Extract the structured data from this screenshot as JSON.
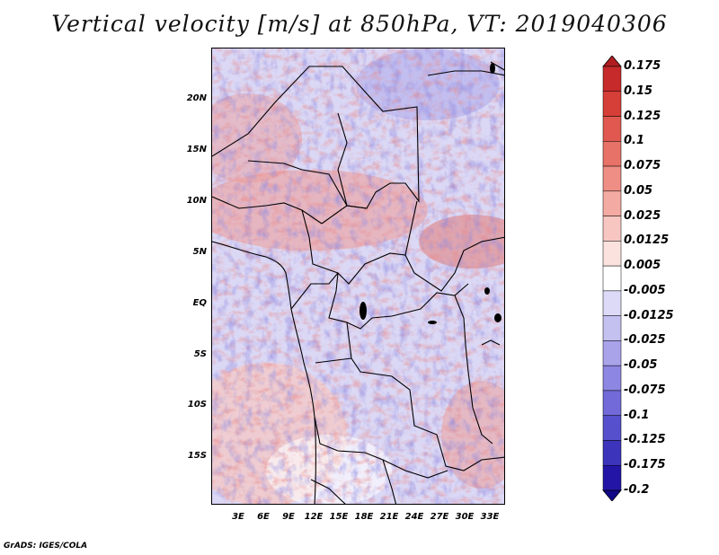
{
  "title": "Vertical velocity [m/s] at 850hPa, VT: 2019040306",
  "y_ticks": [
    "20N",
    "15N",
    "10N",
    "5N",
    "EQ",
    "5S",
    "10S",
    "15S"
  ],
  "x_ticks": [
    "3E",
    "6E",
    "9E",
    "12E",
    "15E",
    "18E",
    "21E",
    "24E",
    "27E",
    "30E",
    "33E"
  ],
  "colorbar": {
    "levels": [
      "0.175",
      "0.15",
      "0.125",
      "0.1",
      "0.075",
      "0.05",
      "0.025",
      "0.0125",
      "0.005",
      "-0.005",
      "-0.0125",
      "-0.025",
      "-0.05",
      "-0.075",
      "-0.1",
      "-0.125",
      "-0.175",
      "-0.2"
    ],
    "colors": [
      "#b01c20",
      "#c62a2a",
      "#d63e38",
      "#e0584f",
      "#e77268",
      "#ee8e84",
      "#f3aaa2",
      "#f8c6c0",
      "#fce2df",
      "#ffffff",
      "#dcdaf6",
      "#c4c0f0",
      "#a9a3ea",
      "#8d86e2",
      "#716ad8",
      "#5650cc",
      "#3c35bb",
      "#2316a6",
      "#100888"
    ]
  },
  "footer": "GrADS: IGES/COLA"
}
